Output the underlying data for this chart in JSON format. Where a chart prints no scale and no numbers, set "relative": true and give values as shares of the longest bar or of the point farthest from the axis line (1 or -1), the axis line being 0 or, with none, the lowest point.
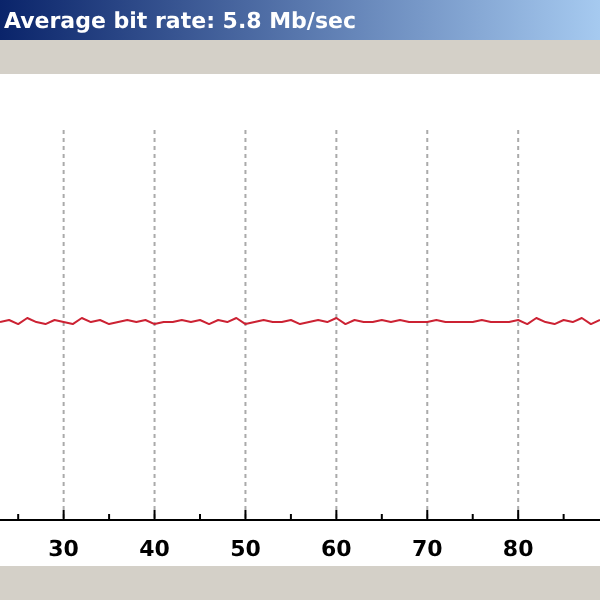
{
  "chart_data": {
    "type": "line",
    "title": "Average bit rate: 5.8 Mb/sec",
    "relative": true,
    "grid": "x",
    "xlim": [
      23,
      89
    ],
    "xticks": [
      {
        "value": 25,
        "label": null
      },
      30,
      {
        "value": 35,
        "label": null
      },
      40,
      {
        "value": 45,
        "label": null
      },
      50,
      {
        "value": 55,
        "label": null
      },
      60,
      {
        "value": 65,
        "label": null
      },
      70,
      {
        "value": 75,
        "label": null
      },
      80,
      {
        "value": 85,
        "label": null
      }
    ],
    "x": [
      23,
      24,
      25,
      26,
      27,
      28,
      29,
      30,
      31,
      32,
      33,
      34,
      35,
      36,
      37,
      38,
      39,
      40,
      41,
      42,
      43,
      44,
      45,
      46,
      47,
      48,
      49,
      50,
      51,
      52,
      53,
      54,
      55,
      56,
      57,
      58,
      59,
      60,
      61,
      62,
      63,
      64,
      65,
      66,
      67,
      68,
      69,
      70,
      71,
      72,
      73,
      74,
      75,
      76,
      77,
      78,
      79,
      80,
      81,
      82,
      83,
      84,
      85,
      86,
      87,
      88,
      89
    ],
    "series": [
      {
        "color": "#cc2233",
        "values": [
          0.98,
          0.99,
          0.97,
          1,
          0.98,
          0.97,
          0.99,
          0.98,
          0.97,
          1,
          0.98,
          0.99,
          0.97,
          0.98,
          0.99,
          0.98,
          0.99,
          0.97,
          0.98,
          0.98,
          0.99,
          0.98,
          0.99,
          0.97,
          0.99,
          0.98,
          1,
          0.97,
          0.98,
          0.99,
          0.98,
          0.98,
          0.99,
          0.97,
          0.98,
          0.99,
          0.98,
          1,
          0.97,
          0.99,
          0.98,
          0.98,
          0.99,
          0.98,
          0.99,
          0.98,
          0.98,
          0.98,
          0.99,
          0.98,
          0.98,
          0.98,
          0.98,
          0.99,
          0.98,
          0.98,
          0.98,
          0.99,
          0.97,
          1,
          0.98,
          0.97,
          0.99,
          0.98,
          1,
          0.97,
          0.99
        ]
      }
    ]
  }
}
